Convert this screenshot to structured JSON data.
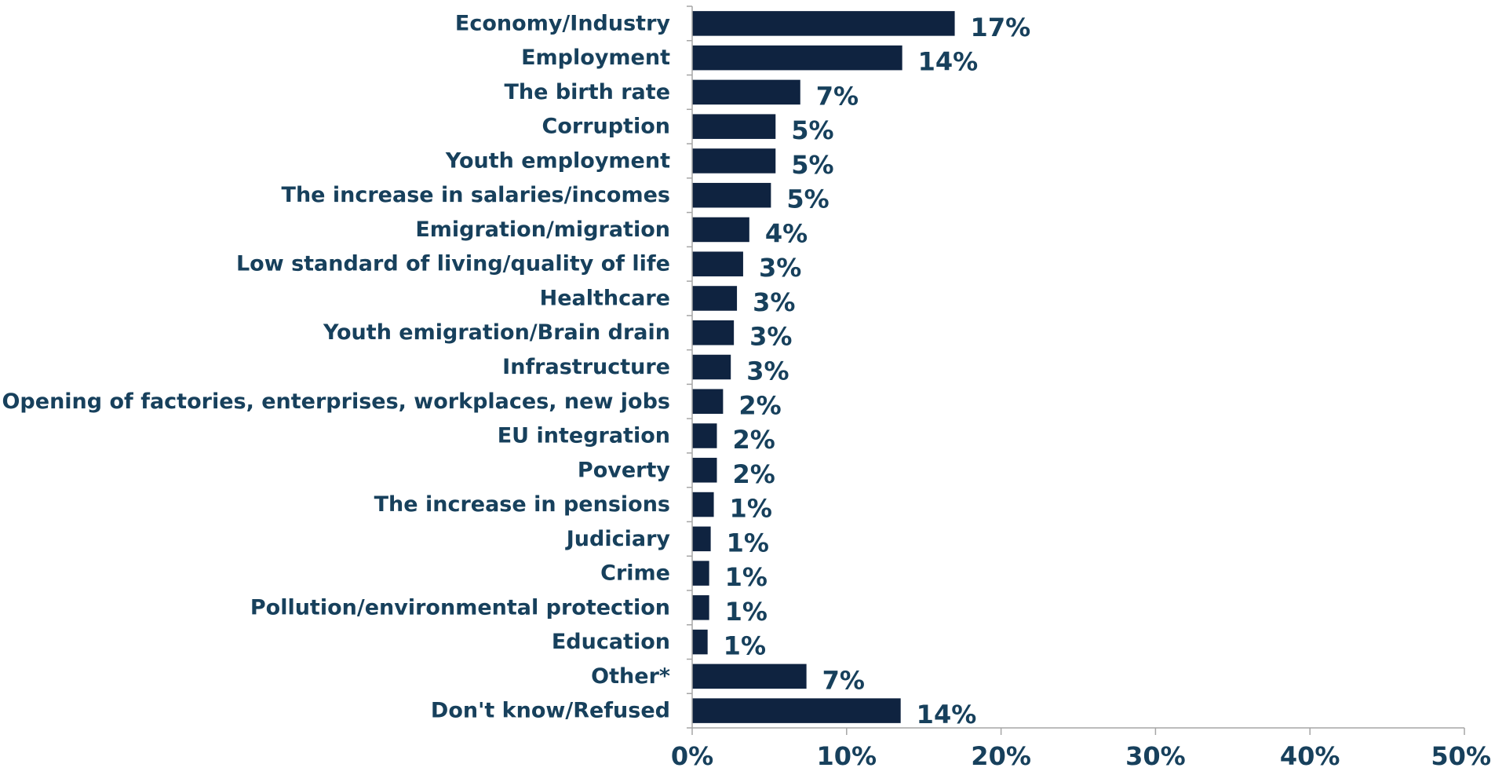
{
  "chart_data": {
    "type": "bar",
    "orientation": "horizontal",
    "title": "",
    "xlabel": "",
    "ylabel": "",
    "categories": [
      "Economy/Industry",
      "Employment",
      "The birth rate",
      "Corruption",
      "Youth employment",
      "The increase in salaries/incomes",
      "Emigration/migration",
      "Low standard of living/quality of life",
      "Healthcare",
      "Youth emigration/Brain drain",
      "Infrastructure",
      "Opening of factories, enterprises, workplaces, new jobs",
      "EU integration",
      "Poverty",
      "The increase in pensions",
      "Judiciary",
      "Crime",
      "Pollution/environmental protection",
      "Education",
      "Other*",
      "Don't know/Refused"
    ],
    "values": [
      17,
      13.6,
      7,
      5.4,
      5.4,
      5.1,
      3.7,
      3.3,
      2.9,
      2.7,
      2.5,
      2.0,
      1.6,
      1.6,
      1.4,
      1.2,
      1.1,
      1.1,
      1.0,
      7.4,
      13.5
    ],
    "value_labels": [
      "17%",
      "14%",
      "7%",
      "5%",
      "5%",
      "5%",
      "4%",
      "3%",
      "3%",
      "3%",
      "3%",
      "2%",
      "2%",
      "2%",
      "1%",
      "1%",
      "1%",
      "1%",
      "1%",
      "7%",
      "14%"
    ],
    "xlim": [
      0,
      50
    ],
    "x_ticks": [
      0,
      10,
      20,
      30,
      40,
      50
    ],
    "x_tick_labels": [
      "0%",
      "10%",
      "20%",
      "30%",
      "40%",
      "50%"
    ],
    "grid": false,
    "legend": "none",
    "colors": {
      "bar": "#0f2340",
      "category_text": "#17405c",
      "value_text": "#17405c",
      "axis": "#a6a6a6"
    }
  }
}
